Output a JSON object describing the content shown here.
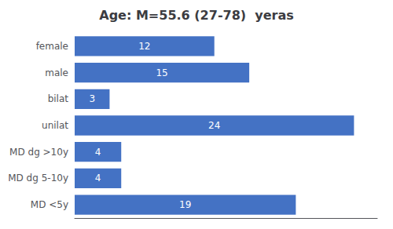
{
  "chart_data": {
    "type": "bar",
    "orientation": "horizontal",
    "title": "Age: M=55.6 (27-78)  yeras",
    "categories": [
      "female",
      "male",
      "bilat",
      "unilat",
      "MD dg >10y",
      "MD dg 5-10y",
      "MD <5y"
    ],
    "values": [
      12,
      15,
      3,
      24,
      4,
      4,
      19
    ],
    "color": "#4472C4",
    "xlim": [
      0,
      26
    ],
    "data_labels": true,
    "tick_labels": "y",
    "grid": false
  }
}
